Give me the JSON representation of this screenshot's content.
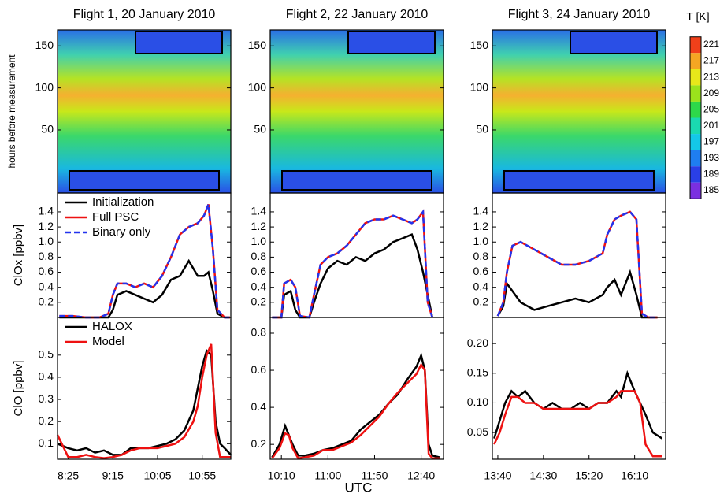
{
  "figure": {
    "xlabel": "UTC",
    "colorbar": {
      "label": "T [K]",
      "ticks": [
        221,
        217,
        213,
        209,
        205,
        201,
        197,
        193,
        189,
        185
      ],
      "colors": [
        "#f0401a",
        "#f5a623",
        "#e8e81a",
        "#9be31c",
        "#2ed84a",
        "#1ad9b0",
        "#14c8e8",
        "#1f7ef0",
        "#2a3fe6",
        "#7b2fe0"
      ]
    }
  },
  "chart_data": [
    {
      "type": "heatmap",
      "title": "Flight 1, 20 January 2010",
      "ylabel": "hours before measurement",
      "ylim": [
        -25,
        169
      ],
      "yticks": [
        50,
        100,
        150
      ]
    },
    {
      "type": "heatmap",
      "title": "Flight 2, 22 January 2010",
      "ylim": [
        -25,
        169
      ],
      "yticks": [
        50,
        100,
        150
      ]
    },
    {
      "type": "heatmap",
      "title": "Flight 3, 24 January 2010",
      "ylim": [
        -25,
        169
      ],
      "yticks": [
        50,
        100,
        150
      ]
    },
    {
      "type": "line",
      "ylabel": "ClOx [ppbv]",
      "legend": "upper left",
      "xlim": [
        493,
        687
      ],
      "ylim": [
        0,
        1.65
      ],
      "yticks": [
        0.2,
        0.4,
        0.6,
        0.8,
        {
          "value": 1,
          "label": "1.0"
        },
        1.2,
        1.4
      ],
      "x": [
        495,
        510,
        525,
        540,
        550,
        555,
        560,
        570,
        580,
        590,
        600,
        610,
        620,
        630,
        640,
        650,
        657,
        662,
        667,
        672,
        680,
        686
      ],
      "series": [
        {
          "name": "Initialization",
          "color": "#000000",
          "values": [
            0,
            0,
            0,
            0,
            0,
            0.1,
            0.3,
            0.35,
            0.3,
            0.25,
            0.2,
            0.3,
            0.5,
            0.55,
            0.75,
            0.55,
            0.55,
            0.6,
            0.35,
            0.05,
            0,
            0
          ]
        },
        {
          "name": "Full PSC",
          "color": "#ee1111",
          "values": [
            0.02,
            0.02,
            0,
            0,
            0.05,
            0.3,
            0.45,
            0.45,
            0.4,
            0.45,
            0.4,
            0.55,
            0.8,
            1.1,
            1.2,
            1.25,
            1.35,
            1.5,
            0.9,
            0.1,
            0,
            0
          ]
        },
        {
          "name": "Binary only",
          "color": "#2233ee",
          "dashed": true,
          "values": [
            0.02,
            0.02,
            0,
            0,
            0.05,
            0.3,
            0.45,
            0.45,
            0.4,
            0.45,
            0.4,
            0.55,
            0.8,
            1.1,
            1.2,
            1.25,
            1.35,
            1.5,
            0.9,
            0.1,
            0,
            0
          ]
        }
      ]
    },
    {
      "type": "line",
      "xlim": [
        598,
        784
      ],
      "ylim": [
        0,
        1.65
      ],
      "yticks": [
        0.2,
        0.4,
        0.6,
        0.8,
        {
          "value": 1,
          "label": "1.0"
        },
        1.2,
        1.4
      ],
      "x": [
        600,
        610,
        613,
        620,
        625,
        630,
        640,
        645,
        652,
        660,
        670,
        680,
        690,
        700,
        710,
        720,
        730,
        740,
        750,
        756,
        762,
        767,
        772
      ],
      "series": [
        {
          "color": "#000000",
          "values": [
            0,
            0,
            0.3,
            0.35,
            0.1,
            0,
            0,
            0.2,
            0.45,
            0.65,
            0.75,
            0.7,
            0.8,
            0.75,
            0.85,
            0.9,
            1.0,
            1.05,
            1.1,
            0.9,
            0.6,
            0.3,
            0
          ]
        },
        {
          "color": "#ee1111",
          "values": [
            0,
            0,
            0.45,
            0.5,
            0.4,
            0.02,
            0,
            0.3,
            0.7,
            0.8,
            0.85,
            0.95,
            1.1,
            1.25,
            1.3,
            1.3,
            1.35,
            1.3,
            1.25,
            1.3,
            1.4,
            0.2,
            0
          ]
        },
        {
          "color": "#2233ee",
          "dashed": true,
          "values": [
            0,
            0,
            0.45,
            0.5,
            0.4,
            0.02,
            0,
            0.3,
            0.7,
            0.8,
            0.85,
            0.95,
            1.1,
            1.25,
            1.3,
            1.3,
            1.35,
            1.3,
            1.25,
            1.3,
            1.4,
            0.2,
            0
          ]
        }
      ]
    },
    {
      "type": "line",
      "xlim": [
        814,
        1004
      ],
      "ylim": [
        0,
        1.65
      ],
      "yticks": [
        0.2,
        0.4,
        0.6,
        0.8,
        {
          "value": 1,
          "label": "1.0"
        },
        1.2,
        1.4
      ],
      "x": [
        820,
        826,
        830,
        836,
        845,
        860,
        875,
        890,
        905,
        920,
        935,
        940,
        948,
        955,
        965,
        972,
        978,
        985,
        995
      ],
      "series": [
        {
          "color": "#000000",
          "values": [
            0.02,
            0.15,
            0.45,
            0.35,
            0.2,
            0.1,
            0.15,
            0.2,
            0.25,
            0.2,
            0.3,
            0.4,
            0.5,
            0.3,
            0.6,
            0.3,
            0,
            0,
            0
          ]
        },
        {
          "color": "#ee1111",
          "values": [
            0.02,
            0.2,
            0.6,
            0.95,
            1.0,
            0.9,
            0.8,
            0.7,
            0.7,
            0.75,
            0.85,
            1.1,
            1.3,
            1.35,
            1.4,
            1.3,
            0.05,
            0,
            0
          ]
        },
        {
          "color": "#2233ee",
          "dashed": true,
          "values": [
            0.02,
            0.2,
            0.6,
            0.95,
            1.0,
            0.9,
            0.8,
            0.7,
            0.7,
            0.75,
            0.85,
            1.1,
            1.3,
            1.35,
            1.4,
            1.3,
            0.05,
            0,
            0
          ]
        }
      ]
    },
    {
      "type": "line",
      "ylabel": "ClO [ppbv]",
      "legend": "upper left",
      "xlim": [
        493,
        687
      ],
      "ylim": [
        0.03,
        0.67
      ],
      "yticks": [
        0.1,
        0.2,
        0.3,
        0.4,
        0.5
      ],
      "xticks": [
        {
          "value": 505,
          "label": "8:25"
        },
        {
          "value": 555,
          "label": "9:15"
        },
        {
          "value": 605,
          "label": "10:05"
        },
        {
          "value": 655,
          "label": "10:55"
        }
      ],
      "x": [
        493,
        505,
        515,
        525,
        535,
        545,
        555,
        565,
        575,
        585,
        595,
        605,
        615,
        625,
        635,
        645,
        650,
        655,
        660,
        665,
        670,
        675,
        680,
        687
      ],
      "series": [
        {
          "name": "HALOX",
          "color": "#000000",
          "values": [
            0.1,
            0.08,
            0.07,
            0.08,
            0.06,
            0.07,
            0.05,
            0.05,
            0.08,
            0.08,
            0.08,
            0.09,
            0.1,
            0.12,
            0.16,
            0.25,
            0.35,
            0.45,
            0.52,
            0.5,
            0.2,
            0.1,
            0.08,
            0.05
          ]
        },
        {
          "name": "Model",
          "color": "#ee1111",
          "values": [
            0.14,
            0.04,
            0.04,
            0.05,
            0.04,
            0.035,
            0.04,
            0.05,
            0.07,
            0.08,
            0.08,
            0.08,
            0.09,
            0.1,
            0.13,
            0.2,
            0.27,
            0.4,
            0.5,
            0.55,
            0.15,
            0.04,
            0.04,
            0.04
          ]
        }
      ]
    },
    {
      "type": "line",
      "xlim": [
        598,
        784
      ],
      "ylim": [
        0.12,
        0.885
      ],
      "yticks": [
        0.2,
        0.4,
        0.6,
        0.8
      ],
      "xticks": [
        {
          "value": 610,
          "label": "10:10"
        },
        {
          "value": 660,
          "label": "11:00"
        },
        {
          "value": 710,
          "label": "11:50"
        },
        {
          "value": 760,
          "label": "12:40"
        }
      ],
      "x": [
        600,
        608,
        614,
        618,
        622,
        628,
        635,
        645,
        655,
        665,
        675,
        685,
        695,
        705,
        715,
        725,
        735,
        745,
        755,
        760,
        764,
        768,
        772,
        780
      ],
      "series": [
        {
          "color": "#000000",
          "values": [
            0.13,
            0.2,
            0.3,
            0.25,
            0.2,
            0.14,
            0.14,
            0.15,
            0.17,
            0.18,
            0.2,
            0.22,
            0.28,
            0.32,
            0.36,
            0.42,
            0.47,
            0.55,
            0.62,
            0.68,
            0.6,
            0.2,
            0.14,
            0.13
          ]
        },
        {
          "color": "#ee1111",
          "values": [
            0.125,
            0.18,
            0.26,
            0.25,
            0.18,
            0.125,
            0.13,
            0.14,
            0.17,
            0.17,
            0.19,
            0.21,
            0.25,
            0.3,
            0.35,
            0.42,
            0.48,
            0.53,
            0.58,
            0.63,
            0.6,
            0.15,
            0.125,
            0.125
          ]
        }
      ]
    },
    {
      "type": "line",
      "xlim": [
        814,
        1004
      ],
      "ylim": [
        0.005,
        0.244
      ],
      "yticks": [
        0.05,
        {
          "value": 0.1,
          "label": "0.10"
        },
        0.15,
        {
          "value": 0.2,
          "label": "0.20"
        }
      ],
      "xticks": [
        {
          "value": 820,
          "label": "13:40"
        },
        {
          "value": 870,
          "label": "14:30"
        },
        {
          "value": 920,
          "label": "15:20"
        },
        {
          "value": 970,
          "label": "16:10"
        }
      ],
      "x": [
        816,
        822,
        828,
        835,
        842,
        850,
        860,
        870,
        880,
        890,
        900,
        910,
        920,
        930,
        940,
        950,
        955,
        962,
        970,
        976,
        982,
        990,
        1000
      ],
      "series": [
        {
          "color": "#000000",
          "values": [
            0.04,
            0.07,
            0.1,
            0.12,
            0.11,
            0.12,
            0.1,
            0.09,
            0.1,
            0.09,
            0.09,
            0.1,
            0.09,
            0.1,
            0.1,
            0.12,
            0.11,
            0.15,
            0.12,
            0.1,
            0.08,
            0.05,
            0.04
          ]
        },
        {
          "color": "#ee1111",
          "values": [
            0.03,
            0.05,
            0.08,
            0.11,
            0.11,
            0.1,
            0.1,
            0.09,
            0.09,
            0.09,
            0.09,
            0.09,
            0.09,
            0.1,
            0.1,
            0.11,
            0.12,
            0.12,
            0.12,
            0.1,
            0.03,
            0.01,
            0.01
          ]
        }
      ]
    }
  ]
}
